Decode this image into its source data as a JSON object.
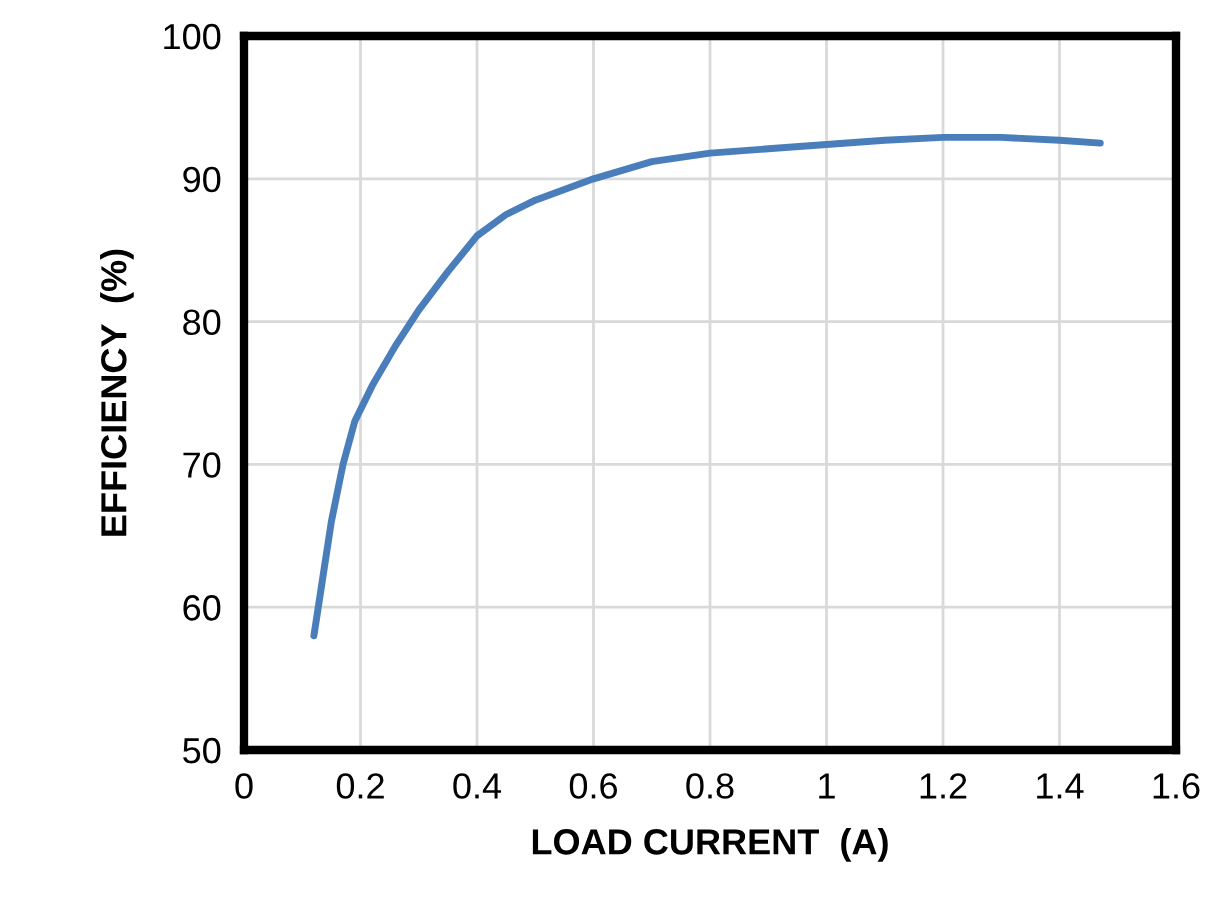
{
  "chart_data": {
    "type": "line",
    "xlabel": "LOAD CURRENT  (A)",
    "ylabel": "EFFICIENCY  (%)",
    "x": [
      0.12,
      0.135,
      0.15,
      0.17,
      0.19,
      0.22,
      0.26,
      0.3,
      0.35,
      0.4,
      0.45,
      0.5,
      0.6,
      0.7,
      0.8,
      0.9,
      1.0,
      1.1,
      1.2,
      1.3,
      1.4,
      1.47
    ],
    "series": [
      {
        "color": "#4a7ebb",
        "values": [
          58,
          62,
          66,
          70,
          73,
          75.5,
          78.3,
          80.8,
          83.5,
          86,
          87.5,
          88.5,
          90,
          91.2,
          91.8,
          92.1,
          92.4,
          92.7,
          92.9,
          92.9,
          92.7,
          92.5
        ]
      }
    ],
    "xlim": [
      0,
      1.6
    ],
    "xticks": [
      0,
      0.2,
      0.4,
      0.6,
      0.8,
      1,
      1.2,
      1.4,
      1.6
    ],
    "ylim": [
      50,
      100
    ],
    "yticks": [
      50,
      60,
      70,
      80,
      90,
      100
    ],
    "grid": true,
    "line_style": "solid",
    "marker": "none"
  }
}
